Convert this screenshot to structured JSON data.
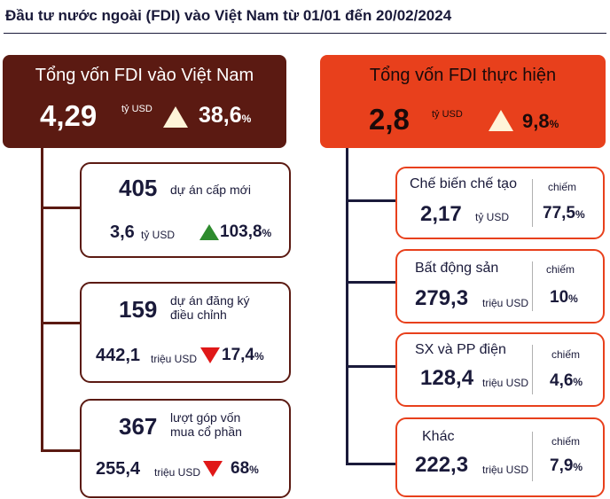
{
  "title": "Đầu tư nước ngoài (FDI) vào Việt Nam từ 01/01 đến 20/02/2024",
  "left_header": {
    "title": "Tổng vốn FDI vào Việt Nam",
    "value": "4,29",
    "unit": "tỷ USD",
    "change": "38,6",
    "change_unit": "%"
  },
  "right_header": {
    "title": "Tổng vốn FDI thực hiện",
    "value": "2,8",
    "unit": "tỷ USD",
    "change": "9,8",
    "change_unit": "%"
  },
  "left_cards": [
    {
      "count": "405",
      "label_line1": "dự án cấp mới",
      "label_line2": "",
      "value": "3,6",
      "unit": "tỷ USD",
      "change": "103,8",
      "change_unit": "%",
      "direction": "up"
    },
    {
      "count": "159",
      "label_line1": "dự án đăng ký",
      "label_line2": "điều chỉnh",
      "value": "442,1",
      "unit": "triệu USD",
      "change": "17,4",
      "change_unit": "%",
      "direction": "down"
    },
    {
      "count": "367",
      "label_line1": "lượt góp vốn",
      "label_line2": "mua cổ phần",
      "value": "255,4",
      "unit": "triệu USD",
      "change": "68",
      "change_unit": "%",
      "direction": "down"
    }
  ],
  "right_cards": [
    {
      "sector": "Chế biến chế tạo",
      "value": "2,17",
      "unit": "tỷ USD",
      "share_label": "chiếm",
      "share": "77,5",
      "share_unit": "%"
    },
    {
      "sector": "Bất động sản",
      "value": "279,3",
      "unit": "triệu USD",
      "share_label": "chiếm",
      "share": "10",
      "share_unit": "%"
    },
    {
      "sector": "SX và PP điện",
      "value": "128,4",
      "unit": "triệu USD",
      "share_label": "chiếm",
      "share": "4,6",
      "share_unit": "%"
    },
    {
      "sector": "Khác",
      "value": "222,3",
      "unit": "triệu USD",
      "share_label": "chiếm",
      "share": "7,9",
      "share_unit": "%"
    }
  ],
  "colors": {
    "dark_brown": "#5b1a12",
    "orange_red": "#e8401c",
    "navy_line": "#1a1a3a",
    "up_green": "#2e8b2e",
    "down_red": "#e01818"
  }
}
